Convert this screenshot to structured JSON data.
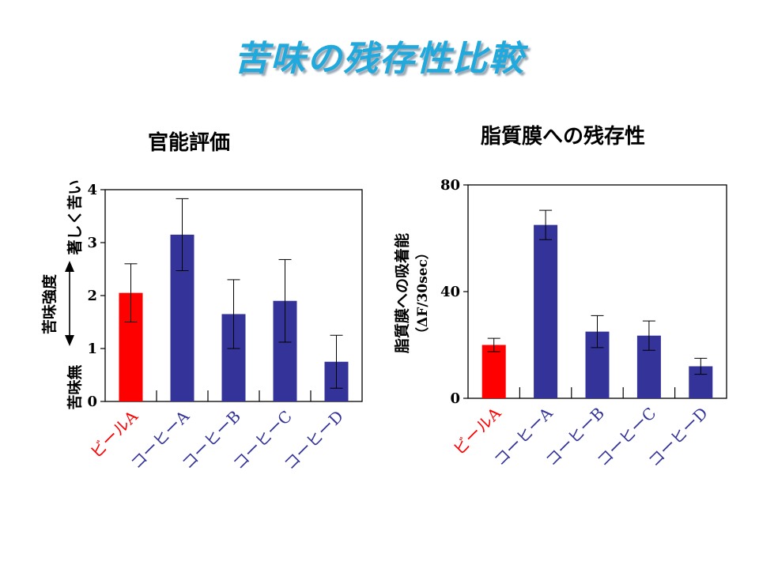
{
  "slide": {
    "title": "苦味の残存性比較"
  },
  "colors": {
    "title": "#1fa9dc",
    "beer": "#ff0000",
    "coffee": "#333399"
  },
  "chart_data": [
    {
      "type": "bar",
      "title": "官能評価",
      "categories": [
        "ビールA",
        "コーヒーA",
        "コーヒーB",
        "コーヒーC",
        "コーヒーD"
      ],
      "category_colors": [
        "#ff0000",
        "#333399",
        "#333399",
        "#333399",
        "#333399"
      ],
      "values": [
        2.05,
        3.15,
        1.65,
        1.9,
        0.75
      ],
      "errors": [
        0.55,
        0.68,
        0.65,
        0.78,
        0.5
      ],
      "ylim": [
        0,
        4
      ],
      "yticks": [
        0,
        1,
        2,
        3,
        4
      ],
      "y_axis_labels": {
        "low": "苦味無",
        "middle": "苦味強度",
        "high": "著しく苦い"
      },
      "grid": false,
      "legend": "none"
    },
    {
      "type": "bar",
      "title": "脂質膜への残存性",
      "categories": [
        "ビールA",
        "コーヒーA",
        "コーヒーB",
        "コーヒーC",
        "コーヒーD"
      ],
      "category_colors": [
        "#ff0000",
        "#333399",
        "#333399",
        "#333399",
        "#333399"
      ],
      "values": [
        20,
        65,
        25,
        23.5,
        12
      ],
      "errors": [
        2.5,
        5.5,
        6,
        5.5,
        3
      ],
      "ylim": [
        0,
        80
      ],
      "yticks": [
        0,
        40,
        80
      ],
      "ylabel": "脂質膜への吸着能",
      "ylabel_unit": "（ΔF/30sec）",
      "grid": false,
      "legend": "none"
    }
  ]
}
